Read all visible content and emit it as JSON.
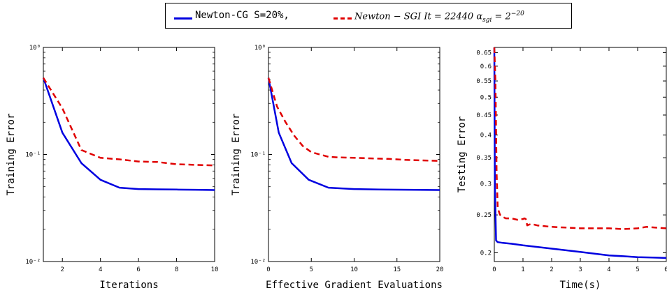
{
  "legend": {
    "series_a": "Newton-CG   S=20%,",
    "series_b_main": "Newton − SGI It = 22440 α",
    "series_b_sub": "sgi",
    "series_b_eq": " = 2",
    "series_b_sup": "−20"
  },
  "colors": {
    "series_a": "#0000e0",
    "series_b": "#e00000"
  },
  "chart_data": [
    {
      "type": "line",
      "xlabel": "Iterations",
      "ylabel": "Training Error",
      "xlim": [
        1,
        10
      ],
      "ylim": [
        0.01,
        1
      ],
      "yscale": "log",
      "xticks": [
        2,
        4,
        6,
        8,
        10
      ],
      "yticks": [
        0.01,
        0.1,
        1
      ],
      "ytick_labels": [
        "10⁻²",
        "10⁻¹",
        "10⁰"
      ],
      "series": [
        {
          "name": "Newton-CG S=20%",
          "style": "solid",
          "x": [
            1,
            2,
            3,
            4,
            5,
            6,
            7,
            8,
            9,
            10
          ],
          "y": [
            0.52,
            0.16,
            0.083,
            0.058,
            0.049,
            0.0475,
            0.0472,
            0.047,
            0.0468,
            0.0465
          ]
        },
        {
          "name": "Newton-SGI",
          "style": "dashed",
          "x": [
            1,
            2,
            3,
            4,
            5,
            6,
            7,
            8,
            9,
            10
          ],
          "y": [
            0.52,
            0.27,
            0.11,
            0.093,
            0.09,
            0.086,
            0.085,
            0.081,
            0.08,
            0.079
          ]
        }
      ]
    },
    {
      "type": "line",
      "xlabel": "Effective Gradient Evaluations",
      "ylabel": "Training Error",
      "xlim": [
        0,
        20
      ],
      "ylim": [
        0.01,
        1
      ],
      "yscale": "log",
      "xticks": [
        0,
        5,
        10,
        15,
        20
      ],
      "yticks": [
        0.01,
        0.1,
        1
      ],
      "ytick_labels": [
        "10⁻²",
        "10⁻¹",
        "10⁰"
      ],
      "series": [
        {
          "name": "Newton-CG S=20%",
          "style": "solid",
          "x": [
            0,
            1.2,
            2.7,
            4.7,
            7,
            10,
            13,
            16.5,
            20
          ],
          "y": [
            0.52,
            0.16,
            0.083,
            0.058,
            0.049,
            0.0475,
            0.047,
            0.0468,
            0.0465
          ]
        },
        {
          "name": "Newton-SGI",
          "style": "dashed",
          "x": [
            0,
            1,
            2,
            3,
            4,
            5,
            6,
            7,
            8,
            10,
            12,
            14,
            16,
            18,
            20
          ],
          "y": [
            0.52,
            0.28,
            0.2,
            0.15,
            0.12,
            0.105,
            0.1,
            0.095,
            0.094,
            0.093,
            0.092,
            0.091,
            0.089,
            0.088,
            0.087
          ]
        }
      ]
    },
    {
      "type": "line",
      "xlabel": "Time(s)",
      "ylabel": "Testing Error",
      "xlim": [
        0,
        6
      ],
      "ylim": [
        0.19,
        0.67
      ],
      "yscale": "log",
      "xticks": [
        0,
        1,
        2,
        3,
        4,
        5,
        6
      ],
      "yticks": [
        0.2,
        0.25,
        0.3,
        0.35,
        0.4,
        0.45,
        0.5,
        0.55,
        0.6,
        0.65
      ],
      "ytick_labels": [
        "0.2",
        "0.25",
        "0.3",
        "0.35",
        "0.4",
        "0.45",
        "0.5",
        "0.55",
        "0.6",
        "0.65"
      ],
      "series": [
        {
          "name": "Newton-CG S=20%",
          "style": "solid",
          "x": [
            0,
            0.02,
            0.06,
            0.12,
            0.3,
            0.6,
            1,
            1.5,
            2,
            2.5,
            3,
            3.5,
            4,
            4.5,
            5,
            5.5,
            6
          ],
          "y": [
            0.67,
            0.3,
            0.215,
            0.213,
            0.212,
            0.211,
            0.209,
            0.207,
            0.205,
            0.203,
            0.201,
            0.199,
            0.197,
            0.196,
            0.195,
            0.1945,
            0.194
          ]
        },
        {
          "name": "Newton-SGI",
          "style": "dashed",
          "x": [
            0,
            0.04,
            0.08,
            0.12,
            0.2,
            0.3,
            0.4,
            0.5,
            0.6,
            0.7,
            0.8,
            0.9,
            1.0,
            1.05,
            1.1,
            1.15,
            1.2,
            1.3,
            1.5,
            2,
            2.5,
            3,
            3.5,
            4,
            4.5,
            5,
            5.3,
            5.6,
            6
          ],
          "y": [
            0.67,
            0.55,
            0.32,
            0.26,
            0.25,
            0.247,
            0.245,
            0.245,
            0.245,
            0.244,
            0.243,
            0.244,
            0.244,
            0.245,
            0.244,
            0.235,
            0.236,
            0.237,
            0.235,
            0.233,
            0.232,
            0.231,
            0.231,
            0.231,
            0.23,
            0.231,
            0.233,
            0.232,
            0.231
          ]
        }
      ]
    }
  ]
}
